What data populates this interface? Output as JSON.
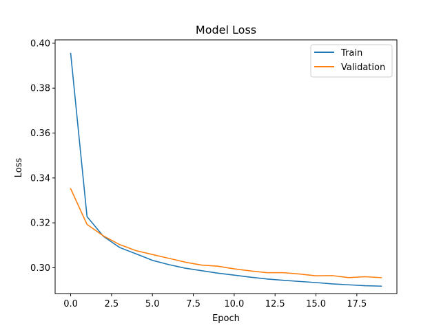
{
  "chart_data": {
    "type": "line",
    "title": "Model Loss",
    "xlabel": "Epoch",
    "ylabel": "Loss",
    "xlim": [
      -0.95,
      19.95
    ],
    "ylim": [
      0.2885,
      0.4015
    ],
    "xticks": [
      0,
      2.5,
      5,
      7.5,
      10,
      12.5,
      15,
      17.5
    ],
    "xtick_labels": [
      "0.0",
      "2.5",
      "5.0",
      "7.5",
      "10.0",
      "12.5",
      "15.0",
      "17.5"
    ],
    "yticks": [
      0.3,
      0.32,
      0.34,
      0.36,
      0.38,
      0.4
    ],
    "ytick_labels": [
      "0.30",
      "0.32",
      "0.34",
      "0.36",
      "0.38",
      "0.40"
    ],
    "grid": false,
    "legend_position": "upper right",
    "x": [
      0,
      1,
      2,
      3,
      4,
      5,
      6,
      7,
      8,
      9,
      10,
      11,
      12,
      13,
      14,
      15,
      16,
      17,
      18,
      19
    ],
    "series": [
      {
        "name": "Train",
        "color": "#1f77b4",
        "values": [
          0.3955,
          0.3228,
          0.314,
          0.309,
          0.3062,
          0.3033,
          0.3014,
          0.2998,
          0.2987,
          0.2976,
          0.2967,
          0.2958,
          0.295,
          0.2944,
          0.2939,
          0.2934,
          0.2928,
          0.2924,
          0.292,
          0.2918
        ]
      },
      {
        "name": "Validation",
        "color": "#ff7f0e",
        "values": [
          0.3352,
          0.3193,
          0.3142,
          0.3103,
          0.3076,
          0.3059,
          0.3042,
          0.3025,
          0.3012,
          0.3007,
          0.2995,
          0.2986,
          0.2978,
          0.2978,
          0.2972,
          0.2964,
          0.2965,
          0.2956,
          0.296,
          0.2956
        ]
      }
    ]
  }
}
